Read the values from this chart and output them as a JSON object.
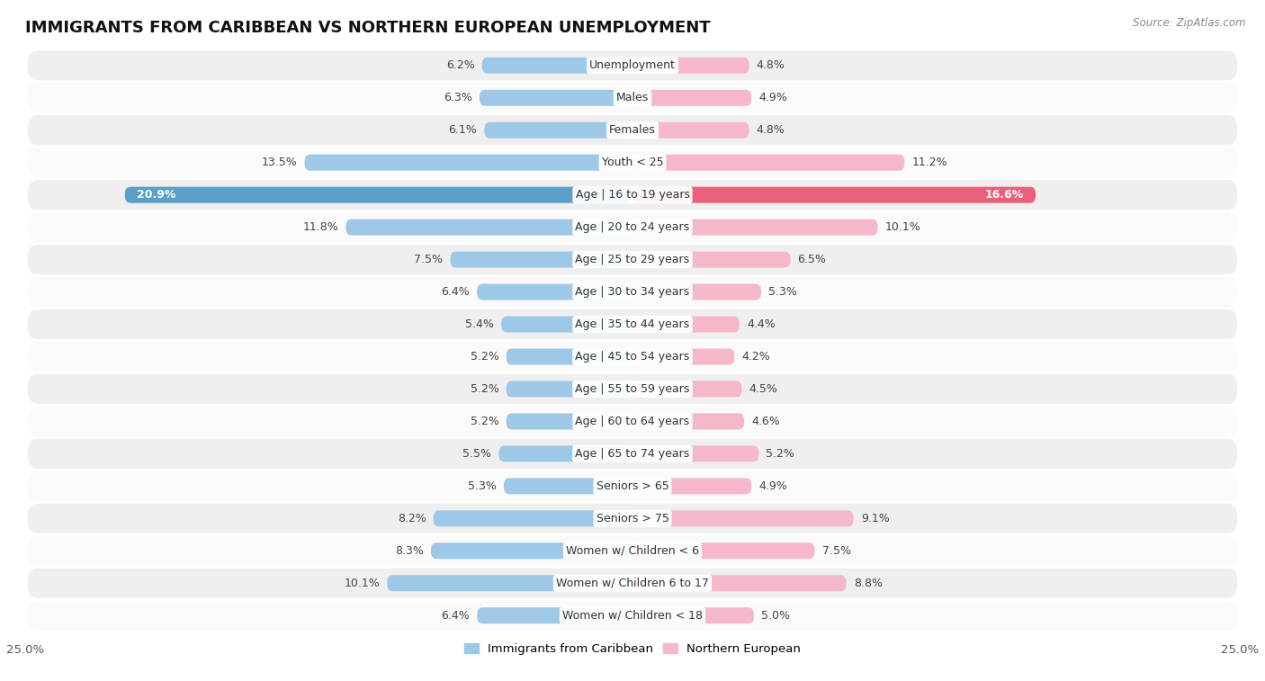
{
  "title": "IMMIGRANTS FROM CARIBBEAN VS NORTHERN EUROPEAN UNEMPLOYMENT",
  "source": "Source: ZipAtlas.com",
  "categories": [
    "Unemployment",
    "Males",
    "Females",
    "Youth < 25",
    "Age | 16 to 19 years",
    "Age | 20 to 24 years",
    "Age | 25 to 29 years",
    "Age | 30 to 34 years",
    "Age | 35 to 44 years",
    "Age | 45 to 54 years",
    "Age | 55 to 59 years",
    "Age | 60 to 64 years",
    "Age | 65 to 74 years",
    "Seniors > 65",
    "Seniors > 75",
    "Women w/ Children < 6",
    "Women w/ Children 6 to 17",
    "Women w/ Children < 18"
  ],
  "caribbean_values": [
    6.2,
    6.3,
    6.1,
    13.5,
    20.9,
    11.8,
    7.5,
    6.4,
    5.4,
    5.2,
    5.2,
    5.2,
    5.5,
    5.3,
    8.2,
    8.3,
    10.1,
    6.4
  ],
  "northern_values": [
    4.8,
    4.9,
    4.8,
    11.2,
    16.6,
    10.1,
    6.5,
    5.3,
    4.4,
    4.2,
    4.5,
    4.6,
    5.2,
    4.9,
    9.1,
    7.5,
    8.8,
    5.0
  ],
  "caribbean_color": "#9ec8e8",
  "northern_color": "#f5b8c8",
  "highlight_caribbean_color": "#5a9fc8",
  "highlight_northern_color": "#e8607a",
  "row_bg_odd": "#efefef",
  "row_bg_even": "#fafafa",
  "bar_height": 0.5,
  "xlim": 25.0,
  "label_fontsize": 9,
  "category_fontsize": 9,
  "title_fontsize": 13,
  "highlight_rows": [
    4
  ]
}
